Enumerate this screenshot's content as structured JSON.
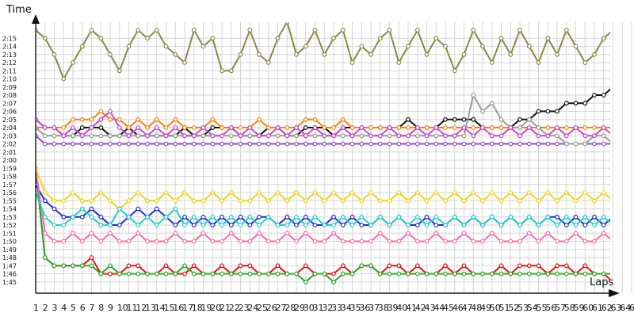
{
  "chart_data": {
    "type": "line",
    "ylabel": "Time",
    "xlabel": "Laps",
    "x_ticks": [
      "1",
      "2",
      "3",
      "4",
      "5",
      "6",
      "7",
      "8",
      "9",
      "10",
      "11",
      "12",
      "13",
      "14",
      "15",
      "16",
      "17",
      "18",
      "19",
      "20",
      "21",
      "22",
      "23",
      "24",
      "25",
      "26",
      "27",
      "28",
      "29",
      "30",
      "31",
      "32",
      "33",
      "34",
      "35",
      "36",
      "37",
      "38",
      "39",
      "40",
      "41",
      "42",
      "43",
      "44",
      "45",
      "46",
      "47",
      "48",
      "49",
      "50",
      "51",
      "52",
      "53",
      "54",
      "55",
      "56",
      "57",
      "58",
      "59",
      "60",
      "61",
      "62",
      "63",
      "64",
      "65",
      "66",
      "67"
    ],
    "y_ticks": [
      "1:45",
      "1:46",
      "1:47",
      "1:48",
      "1:49",
      "1:50",
      "1:51",
      "1:52",
      "1:53",
      "1:54",
      "1:55",
      "1:56",
      "1:57",
      "1:58",
      "1:59",
      "2:00",
      "2:01",
      "2:02",
      "2:03",
      "2:04",
      "2:05",
      "2:06",
      "2:07",
      "2:08",
      "2:09",
      "2:10",
      "2:11",
      "2:12",
      "2:13",
      "2:14",
      "2:15"
    ],
    "xlim": [
      1,
      67
    ],
    "ylim_seconds": [
      104,
      137
    ],
    "grid": true,
    "series": [
      {
        "color": "#e8100f",
        "values": [
          119,
          108,
          107,
          107,
          107,
          107,
          108,
          106,
          106,
          106,
          107,
          107,
          106,
          106,
          107,
          106,
          106,
          107,
          106,
          106,
          107,
          106,
          107,
          107,
          106,
          106,
          107,
          106,
          106,
          107,
          106,
          106,
          106,
          107,
          106,
          107,
          107,
          106,
          107,
          107,
          106,
          107,
          106,
          106,
          107,
          106,
          107,
          106,
          106,
          106,
          107,
          106,
          107,
          107,
          107,
          106,
          107,
          107,
          106,
          107,
          106,
          106,
          105,
          105,
          106,
          107,
          108
        ]
      },
      {
        "color": "#22aa22",
        "values": [
          119,
          108,
          107,
          107,
          107,
          107,
          107,
          106,
          107,
          106,
          106,
          106,
          106,
          106,
          106,
          106,
          107,
          106,
          106,
          106,
          106,
          106,
          106,
          106,
          106,
          106,
          106,
          106,
          106,
          105,
          106,
          106,
          105,
          106,
          106,
          107,
          107,
          106,
          106,
          106,
          106,
          106,
          106,
          106,
          106,
          106,
          106,
          106,
          106,
          106,
          106,
          106,
          106,
          106,
          106,
          106,
          106,
          106,
          106,
          106,
          106,
          106,
          106,
          106,
          105,
          106,
          106
        ]
      },
      {
        "color": "#1c2bd6",
        "values": [
          117,
          115,
          114,
          113,
          113,
          113,
          114,
          113,
          112,
          112,
          113,
          114,
          113,
          114,
          113,
          112,
          113,
          112,
          113,
          112,
          113,
          112,
          113,
          112,
          113,
          113,
          112,
          113,
          112,
          113,
          112,
          112,
          113,
          112,
          113,
          112,
          112,
          113,
          112,
          113,
          112,
          112,
          113,
          112,
          112,
          113,
          112,
          113,
          112,
          113,
          112,
          113,
          112,
          113,
          112,
          113,
          113,
          112,
          113,
          112,
          113,
          112,
          113,
          112,
          113,
          112,
          112
        ]
      },
      {
        "color": "#ff66aa",
        "values": [
          119,
          111,
          110,
          110,
          111,
          110,
          111,
          110,
          111,
          110,
          110,
          111,
          110,
          110,
          110,
          111,
          110,
          110,
          111,
          110,
          110,
          111,
          110,
          110,
          111,
          110,
          110,
          111,
          110,
          111,
          110,
          110,
          111,
          110,
          110,
          110,
          110,
          111,
          110,
          110,
          111,
          110,
          110,
          111,
          110,
          110,
          111,
          110,
          110,
          111,
          110,
          110,
          110,
          111,
          110,
          111,
          110,
          110,
          111,
          110,
          110,
          111,
          110,
          110,
          111,
          110,
          110
        ]
      },
      {
        "color": "#f0d020",
        "values": [
          119,
          116,
          115,
          115,
          116,
          115,
          115,
          116,
          115,
          114,
          115,
          116,
          115,
          115,
          116,
          115,
          116,
          115,
          115,
          116,
          115,
          116,
          115,
          115,
          116,
          115,
          116,
          115,
          116,
          115,
          116,
          115,
          116,
          115,
          116,
          115,
          116,
          115,
          115,
          116,
          115,
          116,
          115,
          116,
          115,
          116,
          115,
          116,
          115,
          116,
          115,
          116,
          115,
          116,
          115,
          116,
          115,
          116,
          115,
          116,
          115,
          116,
          115,
          116,
          115,
          116,
          115
        ]
      },
      {
        "color": "#111111",
        "values": [
          125,
          124,
          124,
          123,
          123,
          124,
          124,
          124,
          123,
          123,
          124,
          123,
          123,
          123,
          123,
          123,
          124,
          123,
          123,
          124,
          124,
          124,
          123,
          123,
          123,
          124,
          124,
          123,
          123,
          124,
          124,
          124,
          123,
          124,
          124,
          124,
          124,
          124,
          124,
          124,
          125,
          124,
          124,
          124,
          125,
          125,
          125,
          125,
          124,
          124,
          124,
          124,
          125,
          125,
          126,
          126,
          126,
          127,
          127,
          127,
          128,
          128,
          129,
          129,
          130,
          130,
          131
        ]
      },
      {
        "color": "#9944cc",
        "values": [
          123,
          122,
          122,
          122,
          122,
          122,
          122,
          122,
          122,
          122,
          122,
          122,
          122,
          122,
          122,
          122,
          122,
          122,
          122,
          122,
          122,
          122,
          122,
          122,
          122,
          122,
          122,
          122,
          122,
          122,
          122,
          122,
          122,
          122,
          122,
          122,
          122,
          122,
          122,
          122,
          122,
          122,
          122,
          122,
          122,
          122,
          122,
          122,
          122,
          122,
          122,
          122,
          122,
          122,
          122,
          122,
          122,
          122,
          122,
          122,
          122,
          122,
          122,
          122,
          122,
          122,
          122
        ]
      },
      {
        "color": "#ff7f00",
        "values": [
          124,
          124,
          124,
          124,
          125,
          125,
          125,
          126,
          125,
          125,
          124,
          125,
          124,
          125,
          124,
          125,
          124,
          124,
          124,
          125,
          124,
          124,
          124,
          124,
          125,
          124,
          124,
          124,
          124,
          125,
          125,
          124,
          124,
          125,
          124,
          124,
          124,
          124,
          124,
          124,
          124,
          124,
          124,
          124,
          124,
          124,
          124,
          124,
          124,
          124,
          124,
          124,
          124,
          124,
          124,
          124,
          124,
          124,
          124,
          124,
          124,
          124,
          124,
          124,
          124,
          124,
          124
        ]
      },
      {
        "color": "#22cccc",
        "values": [
          116,
          113,
          112,
          112,
          113,
          114,
          113,
          112,
          112,
          114,
          113,
          112,
          113,
          112,
          113,
          114,
          112,
          113,
          112,
          113,
          112,
          113,
          112,
          113,
          112,
          113,
          112,
          112,
          113,
          112,
          113,
          112,
          112,
          113,
          112,
          113,
          112,
          113,
          112,
          113,
          112,
          113,
          112,
          113,
          112,
          113,
          112,
          113,
          112,
          113,
          112,
          113,
          112,
          113,
          112,
          113,
          112,
          113,
          112,
          113,
          112,
          113,
          112,
          113,
          112,
          113,
          112
        ]
      },
      {
        "color": "#999999",
        "values": [
          124,
          123,
          123,
          123,
          123,
          123,
          123,
          123,
          123,
          123,
          123,
          123,
          123,
          123,
          123,
          123,
          123,
          123,
          123,
          123,
          123,
          123,
          123,
          123,
          123,
          123,
          123,
          123,
          123,
          123,
          123,
          123,
          123,
          123,
          123,
          123,
          123,
          123,
          123,
          123,
          123,
          123,
          123,
          123,
          123,
          123,
          123,
          128,
          126,
          127,
          125,
          124,
          124,
          125,
          124,
          123,
          123,
          122,
          122,
          122,
          123,
          123,
          122,
          122,
          122,
          122,
          122
        ]
      },
      {
        "color": "#888844",
        "values": [
          136,
          135,
          133,
          130,
          132,
          134,
          136,
          135,
          133,
          131,
          134,
          136,
          135,
          136,
          134,
          133,
          132,
          136,
          134,
          135,
          131,
          131,
          133,
          136,
          133,
          132,
          135,
          137,
          133,
          134,
          136,
          133,
          135,
          136,
          132,
          134,
          133,
          135,
          136,
          132,
          134,
          136,
          133,
          135,
          134,
          131,
          133,
          136,
          134,
          132,
          135,
          133,
          136,
          134,
          132,
          135,
          133,
          136,
          134,
          132,
          133,
          135,
          136,
          134,
          132,
          135,
          133
        ]
      },
      {
        "color": "#cc44cc",
        "values": [
          125,
          124,
          124,
          123,
          124,
          123,
          124,
          125,
          126,
          124,
          123,
          124,
          123,
          124,
          123,
          124,
          123,
          123,
          124,
          123,
          123,
          124,
          123,
          124,
          123,
          123,
          124,
          123,
          124,
          123,
          124,
          123,
          123,
          124,
          123,
          124,
          123,
          123,
          124,
          123,
          123,
          124,
          123,
          124,
          123,
          123,
          124,
          123,
          124,
          123,
          123,
          124,
          123,
          124,
          123,
          123,
          124,
          123,
          124,
          123,
          123,
          124,
          123,
          124,
          123,
          123,
          124
        ]
      }
    ]
  }
}
